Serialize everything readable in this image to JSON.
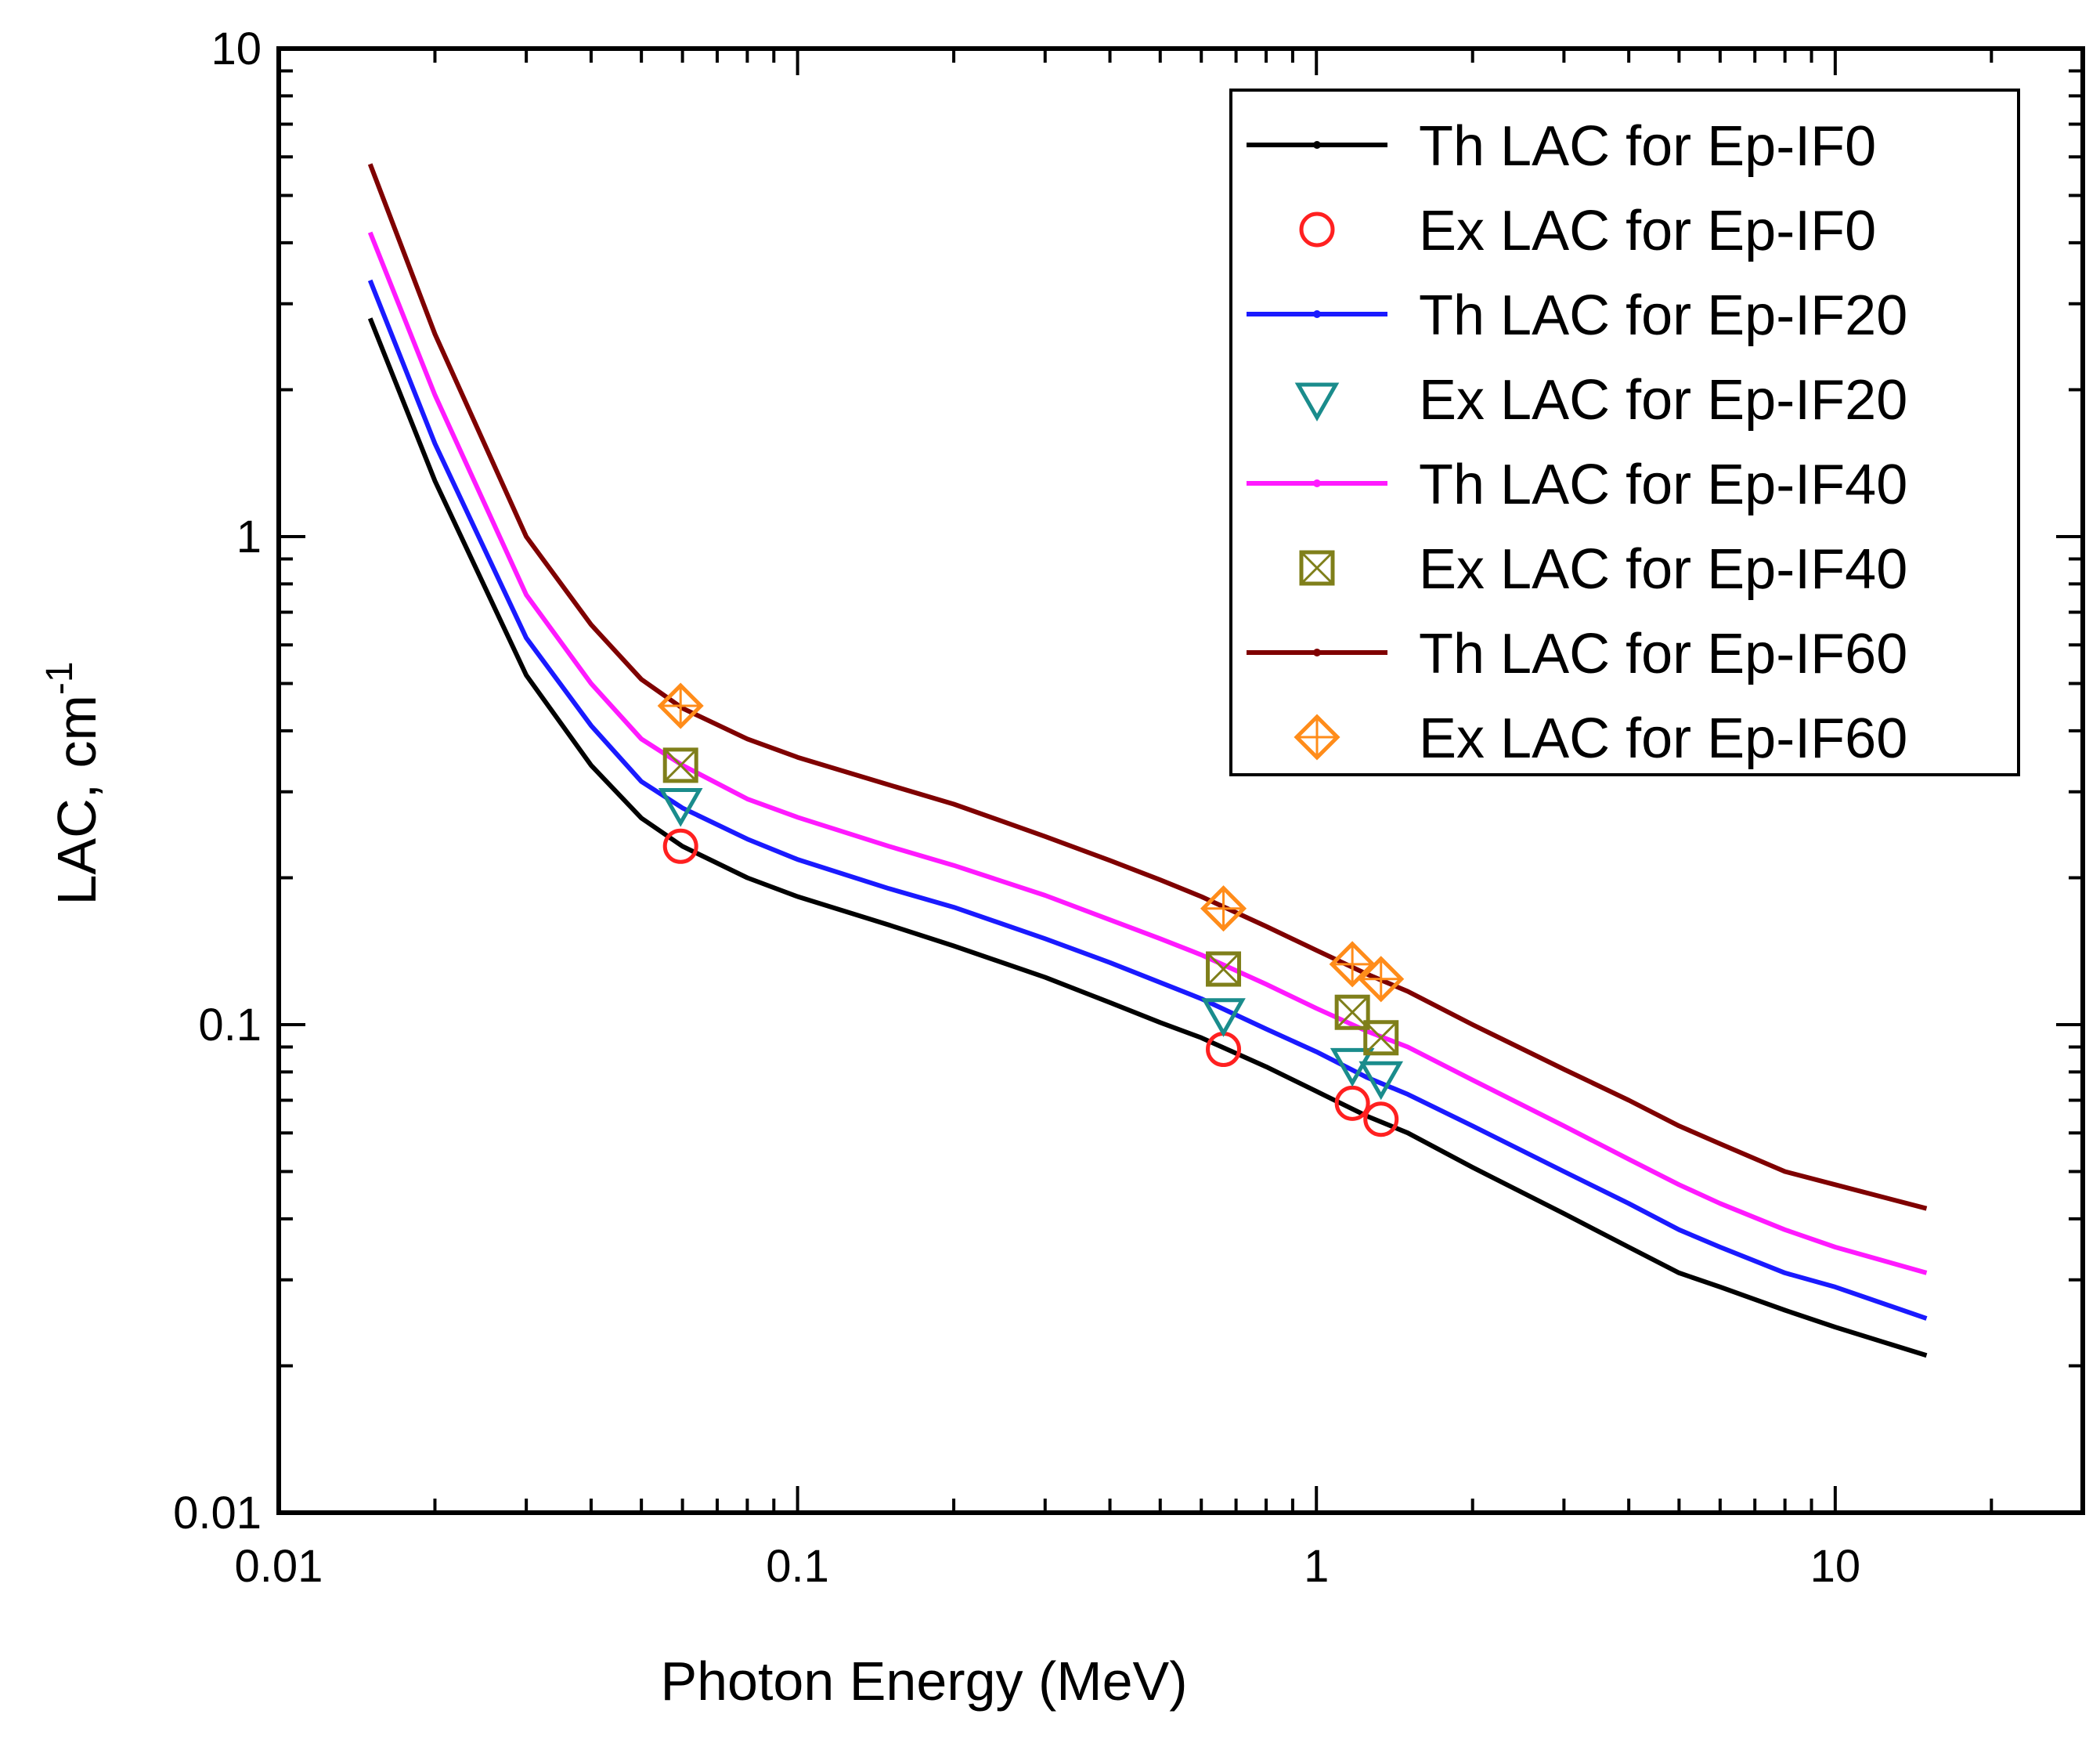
{
  "chart_data": {
    "type": "line",
    "xlabel": "Photon Energy (MeV)",
    "ylabel": "LAC, cm",
    "ylabel_superscript": "-1",
    "xscale": "log",
    "yscale": "log",
    "xlim": [
      0.01,
      30
    ],
    "ylim": [
      0.01,
      10
    ],
    "xticks": [
      {
        "value": 0.01,
        "label": "0.01"
      },
      {
        "value": 0.1,
        "label": "0.1"
      },
      {
        "value": 1,
        "label": "1"
      },
      {
        "value": 10,
        "label": "10"
      }
    ],
    "yticks": [
      {
        "value": 0.01,
        "label": "0.01"
      },
      {
        "value": 0.1,
        "label": "0.1"
      },
      {
        "value": 1,
        "label": "1"
      },
      {
        "value": 10,
        "label": "10"
      }
    ],
    "legend_position": "top-right",
    "x": [
      0.015,
      0.02,
      0.03,
      0.04,
      0.05,
      0.06,
      0.08,
      0.1,
      0.15,
      0.2,
      0.3,
      0.4,
      0.5,
      0.6,
      0.8,
      1,
      1.25,
      1.5,
      2,
      3,
      4,
      5,
      6,
      8,
      10,
      15
    ],
    "series": [
      {
        "name": "Th LAC for Ep-IF0",
        "kind": "line",
        "color": "#000000",
        "values": [
          2.8,
          1.3,
          0.52,
          0.34,
          0.265,
          0.232,
          0.2,
          0.183,
          0.16,
          0.145,
          0.125,
          0.111,
          0.101,
          0.094,
          0.082,
          0.073,
          0.065,
          0.06,
          0.051,
          0.041,
          0.035,
          0.031,
          0.029,
          0.026,
          0.024,
          0.021
        ]
      },
      {
        "name": "Ex LAC for Ep-IF0",
        "kind": "marker",
        "marker": "circle",
        "color": "#ff2020",
        "x": [
          0.0595,
          0.662,
          1.173,
          1.332
        ],
        "values": [
          0.232,
          0.089,
          0.069,
          0.064
        ]
      },
      {
        "name": "Th LAC for Ep-IF20",
        "kind": "line",
        "color": "#1a1aff",
        "values": [
          3.35,
          1.55,
          0.62,
          0.41,
          0.315,
          0.278,
          0.24,
          0.218,
          0.19,
          0.174,
          0.15,
          0.134,
          0.122,
          0.113,
          0.098,
          0.088,
          0.078,
          0.072,
          0.062,
          0.05,
          0.043,
          0.038,
          0.035,
          0.031,
          0.029,
          0.025
        ]
      },
      {
        "name": "Ex LAC for Ep-IF20",
        "kind": "marker",
        "marker": "triangle-down",
        "color": "#1a8c8c",
        "x": [
          0.0595,
          0.662,
          1.173,
          1.332
        ],
        "values": [
          0.283,
          0.105,
          0.083,
          0.078
        ]
      },
      {
        "name": "Th LAC for Ep-IF40",
        "kind": "line",
        "color": "#ff1aff",
        "values": [
          4.2,
          1.95,
          0.76,
          0.5,
          0.385,
          0.34,
          0.29,
          0.266,
          0.232,
          0.212,
          0.184,
          0.164,
          0.15,
          0.139,
          0.121,
          0.108,
          0.097,
          0.09,
          0.077,
          0.062,
          0.053,
          0.047,
          0.043,
          0.038,
          0.035,
          0.031
        ]
      },
      {
        "name": "Ex LAC for Ep-IF40",
        "kind": "marker",
        "marker": "square-x",
        "color": "#7f7f1a",
        "x": [
          0.0595,
          0.662,
          1.173,
          1.332
        ],
        "values": [
          0.34,
          0.13,
          0.106,
          0.094
        ]
      },
      {
        "name": "Th LAC for Ep-IF60",
        "kind": "line",
        "color": "#7f0000",
        "values": [
          5.8,
          2.6,
          1.0,
          0.66,
          0.51,
          0.445,
          0.385,
          0.353,
          0.31,
          0.283,
          0.243,
          0.217,
          0.198,
          0.183,
          0.159,
          0.142,
          0.127,
          0.117,
          0.1,
          0.081,
          0.07,
          0.062,
          0.057,
          0.05,
          0.047,
          0.042
        ]
      },
      {
        "name": "Ex LAC for Ep-IF60",
        "kind": "marker",
        "marker": "diamond-plus",
        "color": "#ff8c1a",
        "x": [
          0.0595,
          0.662,
          1.173,
          1.332
        ],
        "values": [
          0.45,
          0.173,
          0.133,
          0.124
        ]
      }
    ]
  }
}
